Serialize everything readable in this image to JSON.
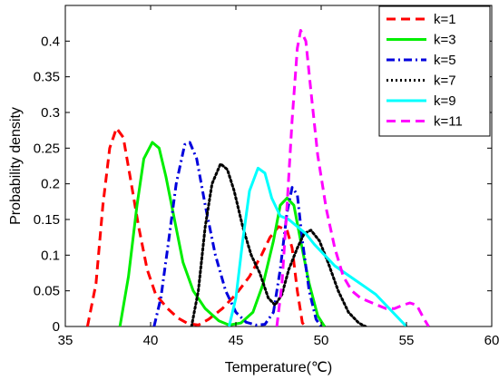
{
  "chart_data": {
    "type": "line",
    "title": "",
    "xlabel": "Temperature(℃)",
    "ylabel": "Probability density",
    "xlim": [
      35,
      60
    ],
    "ylim": [
      0,
      0.45
    ],
    "xticks": [
      "35",
      "40",
      "45",
      "50",
      "55",
      "60"
    ],
    "yticks": [
      "0",
      "0.05",
      "0.1",
      "0.15",
      "0.2",
      "0.25",
      "0.3",
      "0.35",
      "0.4"
    ],
    "grid": false,
    "legend_position": "top-right",
    "series": [
      {
        "name": "k=1",
        "color": "#ff0000",
        "style": "dashed",
        "points": [
          [
            36.3,
            0
          ],
          [
            36.8,
            0.06
          ],
          [
            37.2,
            0.17
          ],
          [
            37.6,
            0.25
          ],
          [
            38.0,
            0.278
          ],
          [
            38.4,
            0.265
          ],
          [
            38.8,
            0.21
          ],
          [
            39.3,
            0.14
          ],
          [
            39.8,
            0.08
          ],
          [
            40.3,
            0.045
          ],
          [
            41.0,
            0.025
          ],
          [
            41.6,
            0.012
          ],
          [
            42.2,
            0.004
          ],
          [
            42.8,
            0.002
          ],
          [
            43.4,
            0.01
          ],
          [
            44.2,
            0.025
          ],
          [
            45.0,
            0.045
          ],
          [
            45.8,
            0.07
          ],
          [
            46.5,
            0.1
          ],
          [
            47.0,
            0.125
          ],
          [
            47.5,
            0.14
          ],
          [
            48.0,
            0.135
          ],
          [
            48.3,
            0.11
          ],
          [
            48.6,
            0.05
          ],
          [
            48.9,
            0.005
          ],
          [
            49.1,
            0
          ]
        ]
      },
      {
        "name": "k=3",
        "color": "#00ee00",
        "style": "solid",
        "points": [
          [
            38.2,
            0
          ],
          [
            38.7,
            0.07
          ],
          [
            39.2,
            0.17
          ],
          [
            39.6,
            0.235
          ],
          [
            40.1,
            0.258
          ],
          [
            40.5,
            0.25
          ],
          [
            40.9,
            0.21
          ],
          [
            41.4,
            0.15
          ],
          [
            41.9,
            0.09
          ],
          [
            42.5,
            0.05
          ],
          [
            43.2,
            0.025
          ],
          [
            44.0,
            0.008
          ],
          [
            44.6,
            0.002
          ],
          [
            45.3,
            0.005
          ],
          [
            46.0,
            0.02
          ],
          [
            46.6,
            0.06
          ],
          [
            47.2,
            0.12
          ],
          [
            47.6,
            0.17
          ],
          [
            48.0,
            0.18
          ],
          [
            48.4,
            0.17
          ],
          [
            48.8,
            0.12
          ],
          [
            49.3,
            0.06
          ],
          [
            49.8,
            0.015
          ],
          [
            50.2,
            0
          ]
        ]
      },
      {
        "name": "k=5",
        "color": "#0000dd",
        "style": "dashdot",
        "points": [
          [
            40.2,
            0
          ],
          [
            40.6,
            0.04
          ],
          [
            41.0,
            0.11
          ],
          [
            41.5,
            0.2
          ],
          [
            42.0,
            0.255
          ],
          [
            42.3,
            0.258
          ],
          [
            42.7,
            0.235
          ],
          [
            43.2,
            0.17
          ],
          [
            43.8,
            0.1
          ],
          [
            44.4,
            0.05
          ],
          [
            45.0,
            0.02
          ],
          [
            45.6,
            0.006
          ],
          [
            46.2,
            0.002
          ],
          [
            46.7,
            0.003
          ],
          [
            47.2,
            0.02
          ],
          [
            47.6,
            0.08
          ],
          [
            48.0,
            0.16
          ],
          [
            48.3,
            0.195
          ],
          [
            48.6,
            0.185
          ],
          [
            48.9,
            0.12
          ],
          [
            49.3,
            0.05
          ],
          [
            49.7,
            0.01
          ],
          [
            50.0,
            0
          ]
        ]
      },
      {
        "name": "k=7",
        "color": "#000000",
        "style": "dotted",
        "points": [
          [
            42.4,
            0
          ],
          [
            42.8,
            0.05
          ],
          [
            43.2,
            0.14
          ],
          [
            43.6,
            0.2
          ],
          [
            44.1,
            0.228
          ],
          [
            44.5,
            0.22
          ],
          [
            44.9,
            0.19
          ],
          [
            45.4,
            0.14
          ],
          [
            45.9,
            0.1
          ],
          [
            46.4,
            0.075
          ],
          [
            46.9,
            0.04
          ],
          [
            47.3,
            0.03
          ],
          [
            47.7,
            0.045
          ],
          [
            48.1,
            0.08
          ],
          [
            48.6,
            0.11
          ],
          [
            49.0,
            0.13
          ],
          [
            49.4,
            0.135
          ],
          [
            49.9,
            0.12
          ],
          [
            50.4,
            0.09
          ],
          [
            51.0,
            0.05
          ],
          [
            51.6,
            0.02
          ],
          [
            52.2,
            0.005
          ],
          [
            52.6,
            0
          ]
        ]
      },
      {
        "name": "k=9",
        "color": "#00ffff",
        "style": "solid",
        "points": [
          [
            44.6,
            0
          ],
          [
            45.0,
            0.04
          ],
          [
            45.4,
            0.12
          ],
          [
            45.8,
            0.19
          ],
          [
            46.3,
            0.222
          ],
          [
            46.7,
            0.215
          ],
          [
            47.1,
            0.18
          ],
          [
            47.6,
            0.155
          ],
          [
            48.1,
            0.15
          ],
          [
            48.6,
            0.14
          ],
          [
            49.1,
            0.13
          ],
          [
            49.6,
            0.115
          ],
          [
            50.2,
            0.1
          ],
          [
            50.8,
            0.085
          ],
          [
            51.4,
            0.075
          ],
          [
            52.0,
            0.065
          ],
          [
            52.6,
            0.055
          ],
          [
            53.2,
            0.045
          ],
          [
            53.8,
            0.03
          ],
          [
            54.4,
            0.015
          ],
          [
            55.0,
            0
          ]
        ]
      },
      {
        "name": "k=11",
        "color": "#ff00ff",
        "style": "dashed",
        "points": [
          [
            47.4,
            0
          ],
          [
            47.7,
            0.06
          ],
          [
            48.0,
            0.17
          ],
          [
            48.3,
            0.29
          ],
          [
            48.6,
            0.39
          ],
          [
            48.8,
            0.415
          ],
          [
            49.1,
            0.4
          ],
          [
            49.4,
            0.33
          ],
          [
            49.8,
            0.24
          ],
          [
            50.3,
            0.165
          ],
          [
            50.8,
            0.11
          ],
          [
            51.3,
            0.07
          ],
          [
            51.8,
            0.05
          ],
          [
            52.3,
            0.04
          ],
          [
            52.8,
            0.035
          ],
          [
            53.3,
            0.03
          ],
          [
            53.8,
            0.025
          ],
          [
            54.3,
            0.025
          ],
          [
            54.8,
            0.03
          ],
          [
            55.2,
            0.033
          ],
          [
            55.6,
            0.03
          ],
          [
            56.0,
            0.012
          ],
          [
            56.3,
            0
          ]
        ]
      }
    ]
  }
}
